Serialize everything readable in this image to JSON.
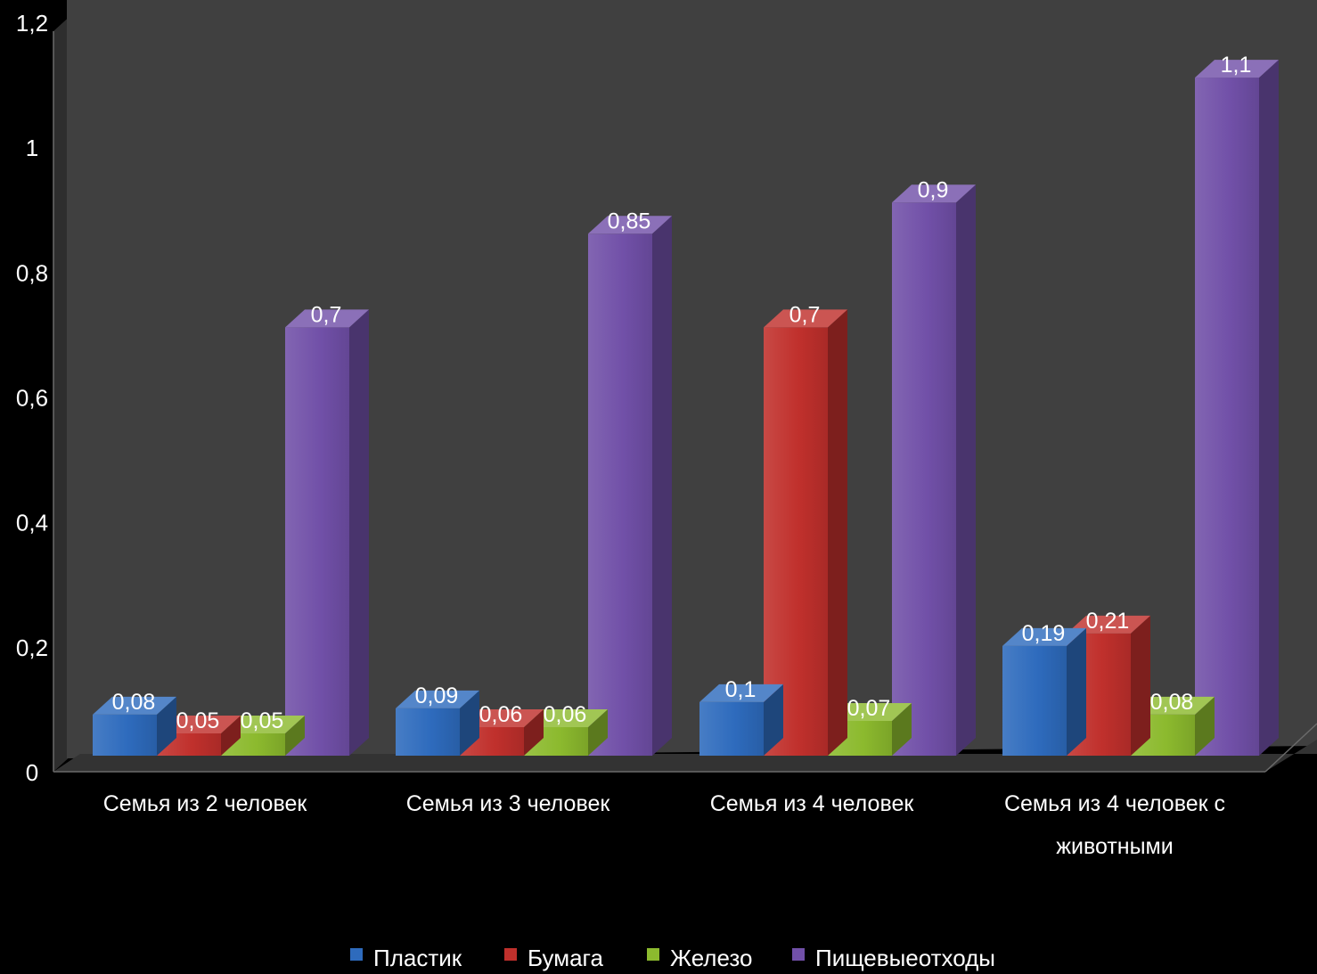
{
  "chart_data": {
    "type": "bar",
    "title": "",
    "xlabel": "",
    "ylabel": "",
    "ylim": [
      0,
      1.2
    ],
    "yticks": [
      "0",
      "0,2",
      "0,4",
      "0,6",
      "0,8",
      "1",
      "1,2"
    ],
    "ytick_values": [
      0,
      0.2,
      0.4,
      0.6,
      0.8,
      1.0,
      1.2
    ],
    "categories": [
      [
        "Семья из 2 человек"
      ],
      [
        "Семья из 3 человек"
      ],
      [
        "Семья из 4 человек"
      ],
      [
        "Семья из 4 человек с",
        "животными"
      ]
    ],
    "series": [
      {
        "name": "Пластик",
        "color": "#2e6bbd",
        "values": [
          0.08,
          0.09,
          0.1,
          0.19
        ],
        "labels": [
          "0,08",
          "0,09",
          "0,1",
          "0,19"
        ]
      },
      {
        "name": "Бумага",
        "color": "#c0302c",
        "values": [
          0.05,
          0.06,
          0.7,
          0.21
        ],
        "labels": [
          "0,05",
          "0,06",
          "0,7",
          "0,21"
        ]
      },
      {
        "name": "Железо",
        "color": "#8cba2e",
        "values": [
          0.05,
          0.06,
          0.07,
          0.08
        ],
        "labels": [
          "0,05",
          "0,06",
          "0,07",
          "0,08"
        ]
      },
      {
        "name": "Пищевыеотходы",
        "color": "#7150a8",
        "values": [
          0.7,
          0.85,
          0.9,
          1.1
        ],
        "labels": [
          "0,7",
          "0,85",
          "0,9",
          "1,1"
        ]
      }
    ],
    "grid": false,
    "legend_position": "bottom",
    "background": "#404040",
    "page_background": "#000000"
  }
}
